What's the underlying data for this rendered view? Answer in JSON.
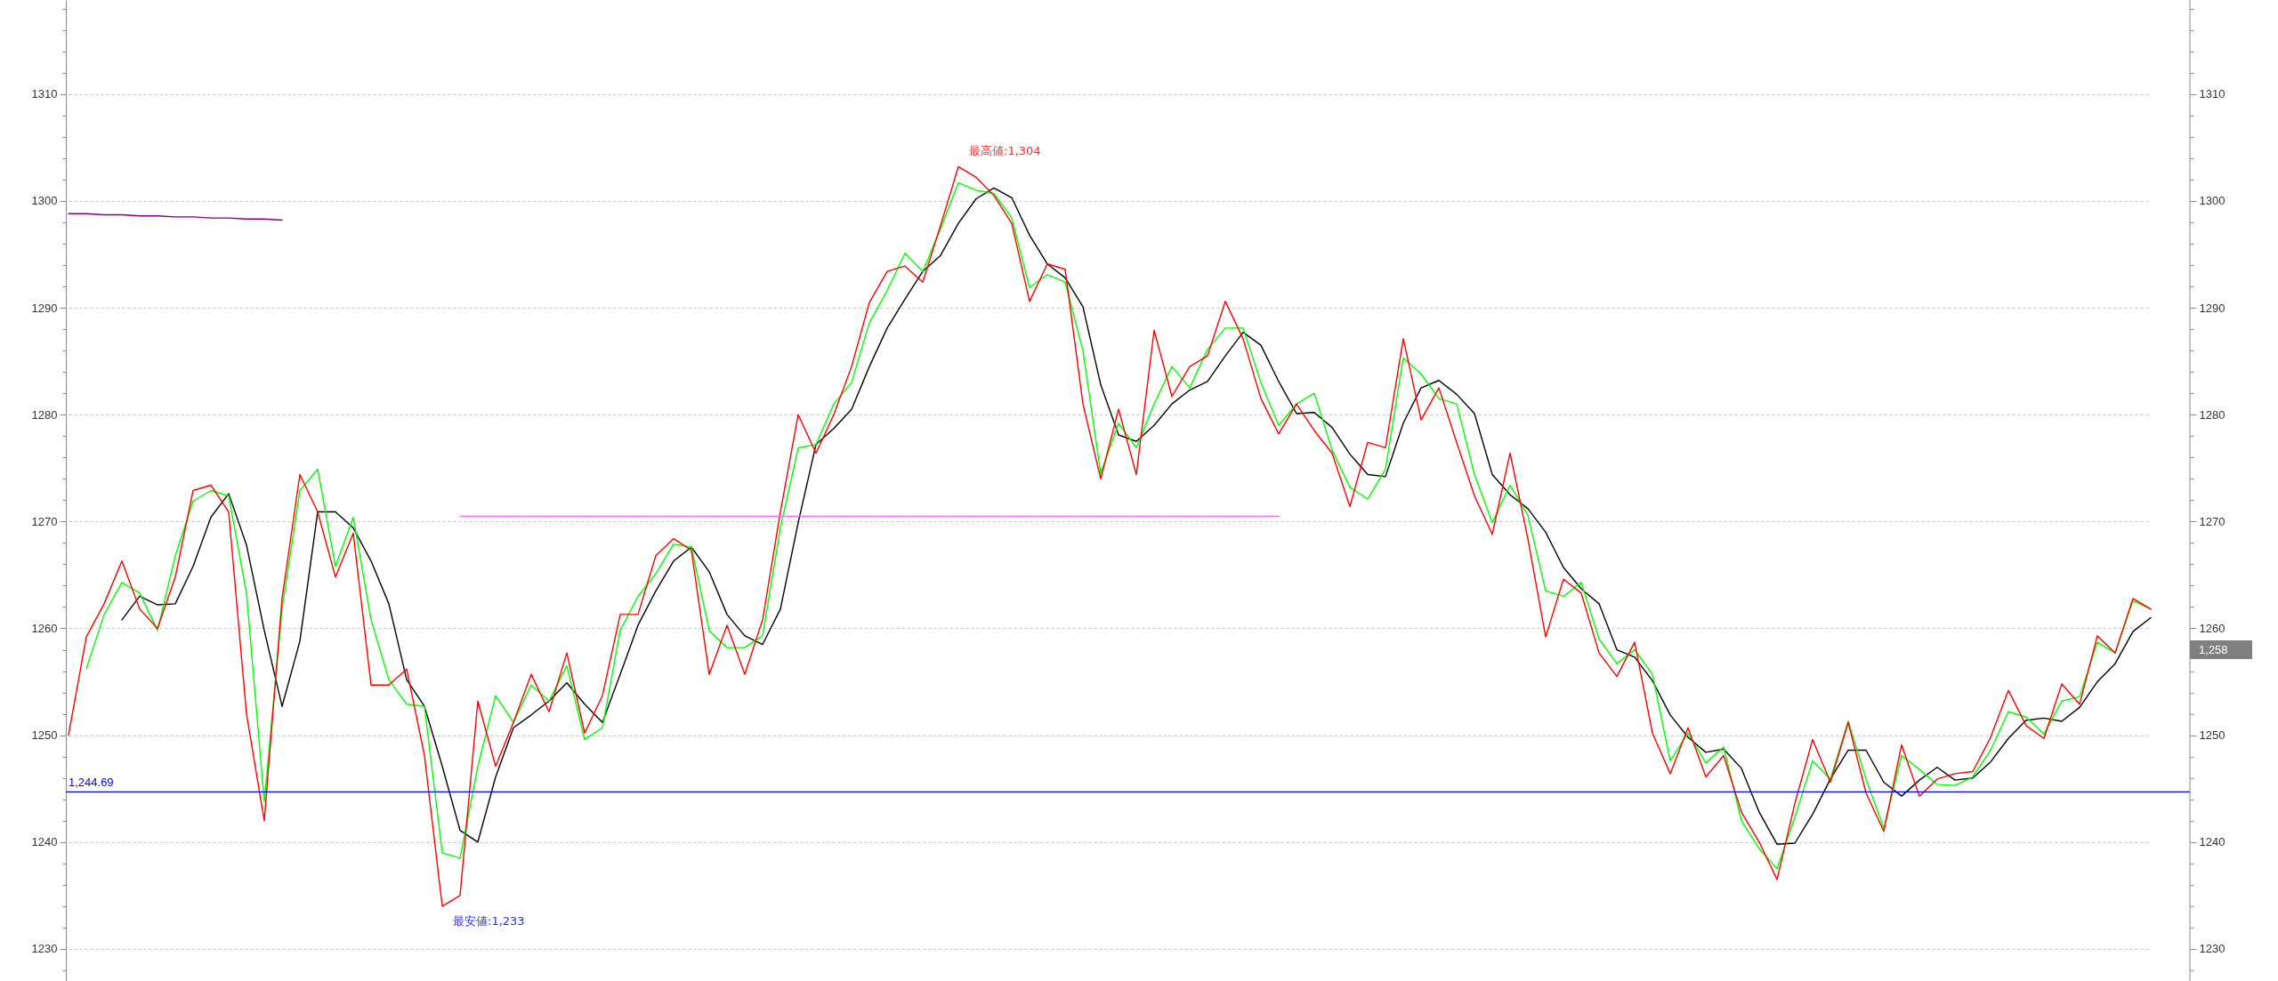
{
  "chart_data": {
    "type": "line",
    "categories": [
      null,
      null,
      null,
      null,
      null,
      null,
      null,
      null,
      null,
      null,
      null,
      null,
      null,
      null,
      null,
      null,
      null,
      null,
      null,
      null,
      null,
      null,
      null,
      null,
      null,
      null,
      null,
      null,
      null,
      null,
      null,
      null,
      null,
      null,
      null,
      null,
      null,
      null,
      null,
      null,
      null,
      null,
      null,
      null,
      null,
      null,
      null,
      null,
      null,
      null,
      null,
      null,
      null,
      null,
      null,
      null,
      null,
      null,
      null,
      null,
      null,
      null,
      null,
      null,
      null,
      null,
      null,
      null,
      null,
      null,
      null,
      null,
      null,
      null,
      null,
      null,
      null,
      null,
      null,
      null,
      null,
      null,
      null,
      null,
      null,
      null,
      null,
      null,
      null,
      null,
      null,
      null,
      null,
      null,
      null,
      null,
      null,
      null,
      null,
      null,
      null,
      null,
      null,
      null,
      null,
      null,
      null,
      null,
      null,
      null,
      null,
      null,
      null,
      null,
      null,
      null,
      null,
      null
    ],
    "series": [
      {
        "color": "#000000",
        "values": [
          null,
          null,
          null,
          1260.8,
          1263.0,
          1262.2,
          1262.3,
          1265.8,
          1270.4,
          1272.6,
          1267.8,
          1259.8,
          1252.7,
          1258.8,
          1270.9,
          1270.9,
          1269.4,
          1266.3,
          1262.3,
          1255.2,
          1252.7,
          1247.1,
          1241.1,
          1240.0,
          1246.1,
          1250.7,
          1251.9,
          1253.2,
          1254.9,
          1252.9,
          1251.2,
          1255.7,
          1260.3,
          1263.5,
          1266.3,
          1267.6,
          1265.3,
          1261.3,
          1259.3,
          1258.5,
          1261.8,
          1269.9,
          1277.2,
          1278.7,
          1280.5,
          1284.5,
          1288.1,
          1290.8,
          1293.4,
          1294.9,
          1297.9,
          1300.2,
          1301.2,
          1300.3,
          1296.8,
          1294.1,
          1292.8,
          1290.1,
          1282.8,
          1278.1,
          1277.5,
          1279.0,
          1281.0,
          1282.3,
          1283.1,
          1285.5,
          1287.7,
          1286.5,
          1283.1,
          1280.1,
          1280.2,
          1278.8,
          1276.3,
          1274.4,
          1274.2,
          1279.2,
          1282.5,
          1283.2,
          1281.9,
          1280.1,
          1274.4,
          1272.5,
          1271.2,
          1269.0,
          1265.7,
          1263.7,
          1262.3,
          1258.0,
          1257.3,
          1255.1,
          1251.9,
          1249.8,
          1248.4,
          1248.7,
          1246.9,
          1242.8,
          1239.8,
          1239.9,
          1242.6,
          1245.9,
          1248.6,
          1248.6,
          1245.6,
          1244.3,
          1245.8,
          1247.0,
          1245.8,
          1246.0,
          1247.5,
          1249.7,
          1251.4,
          1251.6,
          1251.3,
          1252.6,
          1255.0,
          1256.7,
          1259.7,
          1261.0
        ]
      },
      {
        "color": "#00ff00",
        "values": [
          null,
          1256.2,
          1261.3,
          1264.3,
          1263.3,
          1259.8,
          1266.8,
          1271.9,
          1272.9,
          1272.4,
          1263.3,
          1243.8,
          1261.8,
          1272.9,
          1274.9,
          1265.8,
          1270.4,
          1260.8,
          1255.2,
          1252.9,
          1252.7,
          1239.0,
          1238.5,
          1247.1,
          1253.7,
          1251.2,
          1254.7,
          1253.2,
          1256.5,
          1249.6,
          1250.7,
          1259.8,
          1263.0,
          1265.1,
          1267.9,
          1267.6,
          1259.8,
          1258.2,
          1258.2,
          1259.3,
          1269.4,
          1276.9,
          1277.2,
          1281.0,
          1283.0,
          1288.6,
          1291.6,
          1295.1,
          1293.4,
          1297.4,
          1301.7,
          1301.0,
          1300.7,
          1298.4,
          1291.9,
          1293.1,
          1292.4,
          1286.0,
          1274.5,
          1279.2,
          1276.9,
          1281.0,
          1284.5,
          1282.5,
          1286.1,
          1288.1,
          1288.1,
          1283.0,
          1279.0,
          1281.0,
          1282.0,
          1276.7,
          1273.2,
          1272.1,
          1274.9,
          1285.3,
          1283.8,
          1281.5,
          1281.0,
          1274.4,
          1269.9,
          1273.4,
          1270.6,
          1263.5,
          1263.0,
          1264.3,
          1259.0,
          1256.7,
          1258.0,
          1255.7,
          1247.6,
          1250.2,
          1247.4,
          1248.9,
          1242.0,
          1239.4,
          1237.5,
          1242.3,
          1247.6,
          1245.9,
          1251.3,
          1245.9,
          1241.3,
          1248.1,
          1246.8,
          1245.4,
          1245.3,
          1246.1,
          1248.6,
          1252.2,
          1251.7,
          1250.1,
          1253.2,
          1253.6,
          1258.7,
          1257.7,
          1262.6,
          1261.8
        ]
      },
      {
        "color": "#ff0000",
        "values": [
          1250.0,
          1259.2,
          1262.3,
          1266.3,
          1261.8,
          1260.0,
          1264.8,
          1272.9,
          1273.4,
          1270.9,
          1252.0,
          1242.0,
          1262.8,
          1274.4,
          1270.9,
          1264.8,
          1268.9,
          1254.7,
          1254.7,
          1256.2,
          1248.1,
          1234.0,
          1235.0,
          1253.2,
          1247.1,
          1251.2,
          1255.7,
          1252.2,
          1257.7,
          1250.2,
          1253.7,
          1261.3,
          1261.3,
          1266.8,
          1268.4,
          1267.3,
          1255.7,
          1260.3,
          1255.7,
          1260.8,
          1270.9,
          1280.0,
          1276.4,
          1280.0,
          1284.5,
          1290.5,
          1293.4,
          1293.9,
          1292.4,
          1297.7,
          1303.2,
          1302.2,
          1300.5,
          1297.9,
          1290.6,
          1294.1,
          1293.6,
          1281.0,
          1274.0,
          1280.5,
          1274.4,
          1287.9,
          1281.7,
          1284.5,
          1285.5,
          1290.6,
          1287.1,
          1281.5,
          1278.2,
          1281.0,
          1278.5,
          1276.4,
          1271.4,
          1277.4,
          1276.9,
          1287.1,
          1279.5,
          1282.5,
          1277.4,
          1272.4,
          1268.8,
          1276.4,
          1268.4,
          1259.2,
          1264.6,
          1263.3,
          1257.7,
          1255.5,
          1258.7,
          1250.2,
          1246.4,
          1250.7,
          1246.1,
          1248.1,
          1242.8,
          1240.0,
          1236.5,
          1243.6,
          1249.6,
          1245.6,
          1251.2,
          1244.6,
          1241.0,
          1249.1,
          1244.3,
          1245.9,
          1246.4,
          1246.6,
          1249.8,
          1254.2,
          1250.9,
          1249.7,
          1254.8,
          1252.9,
          1259.3,
          1257.7,
          1262.8,
          1261.8
        ]
      },
      {
        "color": "#800080",
        "values": [
          1298.8,
          1298.8,
          1298.7,
          1298.7,
          1298.6,
          1298.6,
          1298.5,
          1298.5,
          1298.4,
          1298.4,
          1298.3,
          1298.3,
          1298.2,
          null,
          null,
          null,
          null,
          null,
          null,
          null,
          null,
          null,
          null,
          null,
          null,
          null,
          null,
          null,
          null,
          null,
          null,
          null,
          null,
          null,
          null,
          null,
          null,
          null,
          null,
          null,
          null,
          null,
          null,
          null,
          null,
          null,
          null,
          null,
          null,
          null,
          null,
          null,
          null,
          null,
          null,
          null,
          null,
          null,
          null,
          null,
          null,
          null,
          null,
          null,
          null,
          null,
          null,
          null,
          null,
          null,
          null,
          null,
          null,
          null,
          null,
          null,
          null,
          null,
          null,
          null,
          null,
          null,
          null,
          null,
          null,
          null,
          null,
          null,
          null,
          null,
          null,
          null,
          null,
          null,
          null,
          null,
          null,
          null,
          null,
          null,
          null,
          null,
          null,
          null,
          null,
          null,
          null,
          null,
          null,
          null,
          null,
          null,
          null,
          null,
          null,
          null,
          null,
          null
        ]
      },
      {
        "color": "#ff66ff",
        "values": [
          null,
          null,
          null,
          null,
          null,
          null,
          null,
          null,
          null,
          null,
          null,
          null,
          null,
          null,
          null,
          null,
          null,
          null,
          null,
          null,
          null,
          null,
          1270.5,
          1270.5,
          1270.5,
          1270.5,
          1270.5,
          1270.5,
          1270.5,
          1270.5,
          1270.5,
          1270.5,
          1270.5,
          1270.5,
          1270.5,
          1270.5,
          1270.5,
          1270.5,
          1270.5,
          1270.5,
          1270.5,
          1270.5,
          1270.5,
          1270.5,
          1270.5,
          1270.5,
          1270.5,
          1270.5,
          1270.5,
          1270.5,
          1270.5,
          1270.5,
          1270.5,
          1270.5,
          1270.5,
          1270.5,
          1270.5,
          1270.5,
          1270.5,
          1270.5,
          1270.5,
          1270.5,
          1270.5,
          1270.5,
          1270.5,
          1270.5,
          1270.5,
          1270.5,
          1270.5,
          null,
          null,
          null,
          null,
          null,
          null,
          null,
          null,
          null,
          null,
          null,
          null,
          null,
          null,
          null,
          null,
          null,
          null,
          null,
          null,
          null,
          null,
          null,
          null,
          null,
          null,
          null,
          null,
          null,
          null,
          null,
          null,
          null,
          null,
          null,
          null,
          null,
          null,
          null,
          null,
          null,
          null,
          null,
          null,
          null,
          null,
          null,
          null,
          null
        ]
      }
    ],
    "ylim": [
      1227.0,
      1318.8
    ],
    "yticks": [
      {
        "value": 1228,
        "label": null
      },
      1230,
      {
        "value": 1232,
        "label": null
      },
      {
        "value": 1234,
        "label": null
      },
      {
        "value": 1236,
        "label": null
      },
      {
        "value": 1238,
        "label": null
      },
      1240,
      {
        "value": 1242,
        "label": null
      },
      {
        "value": 1244,
        "label": null
      },
      {
        "value": 1246,
        "label": null
      },
      {
        "value": 1248,
        "label": null
      },
      1250,
      {
        "value": 1252,
        "label": null
      },
      {
        "value": 1254,
        "label": null
      },
      {
        "value": 1256,
        "label": null
      },
      {
        "value": 1258,
        "label": null
      },
      1260,
      {
        "value": 1262,
        "label": null
      },
      {
        "value": 1264,
        "label": null
      },
      {
        "value": 1266,
        "label": null
      },
      {
        "value": 1268,
        "label": null
      },
      1270,
      {
        "value": 1272,
        "label": null
      },
      {
        "value": 1274,
        "label": null
      },
      {
        "value": 1276,
        "label": null
      },
      {
        "value": 1278,
        "label": null
      },
      1280,
      {
        "value": 1282,
        "label": null
      },
      {
        "value": 1284,
        "label": null
      },
      {
        "value": 1286,
        "label": null
      },
      {
        "value": 1288,
        "label": null
      },
      1290,
      {
        "value": 1292,
        "label": null
      },
      {
        "value": 1294,
        "label": null
      },
      {
        "value": 1296,
        "label": null
      },
      {
        "value": 1298,
        "label": null
      },
      1300,
      {
        "value": 1302,
        "label": null
      },
      {
        "value": 1304,
        "label": null
      },
      {
        "value": 1306,
        "label": null
      },
      {
        "value": 1308,
        "label": null
      },
      1310,
      {
        "value": 1312,
        "label": null
      },
      {
        "value": 1314,
        "label": null
      },
      {
        "value": 1316,
        "label": null
      },
      {
        "value": 1318,
        "label": null
      }
    ],
    "y2lim": [
      1227.0,
      1318.8
    ],
    "y2ticks": [
      {
        "value": 1228,
        "label": null
      },
      1230,
      {
        "value": 1232,
        "label": null
      },
      {
        "value": 1234,
        "label": null
      },
      {
        "value": 1236,
        "label": null
      },
      {
        "value": 1238,
        "label": null
      },
      1240,
      {
        "value": 1242,
        "label": null
      },
      {
        "value": 1244,
        "label": null
      },
      {
        "value": 1246,
        "label": null
      },
      {
        "value": 1248,
        "label": null
      },
      1250,
      {
        "value": 1252,
        "label": null
      },
      {
        "value": 1254,
        "label": null
      },
      {
        "value": 1256,
        "label": null
      },
      {
        "value": 1258,
        "label": "1,258"
      },
      1260,
      {
        "value": 1262,
        "label": null
      },
      {
        "value": 1264,
        "label": null
      },
      {
        "value": 1266,
        "label": null
      },
      {
        "value": 1268,
        "label": null
      },
      1270,
      {
        "value": 1272,
        "label": null
      },
      {
        "value": 1274,
        "label": null
      },
      {
        "value": 1276,
        "label": null
      },
      {
        "value": 1278,
        "label": null
      },
      1280,
      {
        "value": 1282,
        "label": null
      },
      {
        "value": 1284,
        "label": null
      },
      {
        "value": 1286,
        "label": null
      },
      {
        "value": 1288,
        "label": null
      },
      1290,
      {
        "value": 1292,
        "label": null
      },
      {
        "value": 1294,
        "label": null
      },
      {
        "value": 1296,
        "label": null
      },
      {
        "value": 1298,
        "label": null
      },
      1300,
      {
        "value": 1302,
        "label": null
      },
      {
        "value": 1304,
        "label": null
      },
      {
        "value": 1306,
        "label": null
      },
      {
        "value": 1308,
        "label": null
      },
      1310,
      {
        "value": 1312,
        "label": null
      },
      {
        "value": 1314,
        "label": null
      },
      {
        "value": 1316,
        "label": null
      },
      {
        "value": 1318,
        "label": null
      }
    ],
    "ref_lines": [
      {
        "axis": "y",
        "value": 1244.69,
        "label": "1,244.69",
        "color": "#0000ff"
      }
    ],
    "annotations": [
      "最高値:1,304",
      "最安値:1,233"
    ],
    "grid": "y",
    "tick_labels": "y"
  }
}
